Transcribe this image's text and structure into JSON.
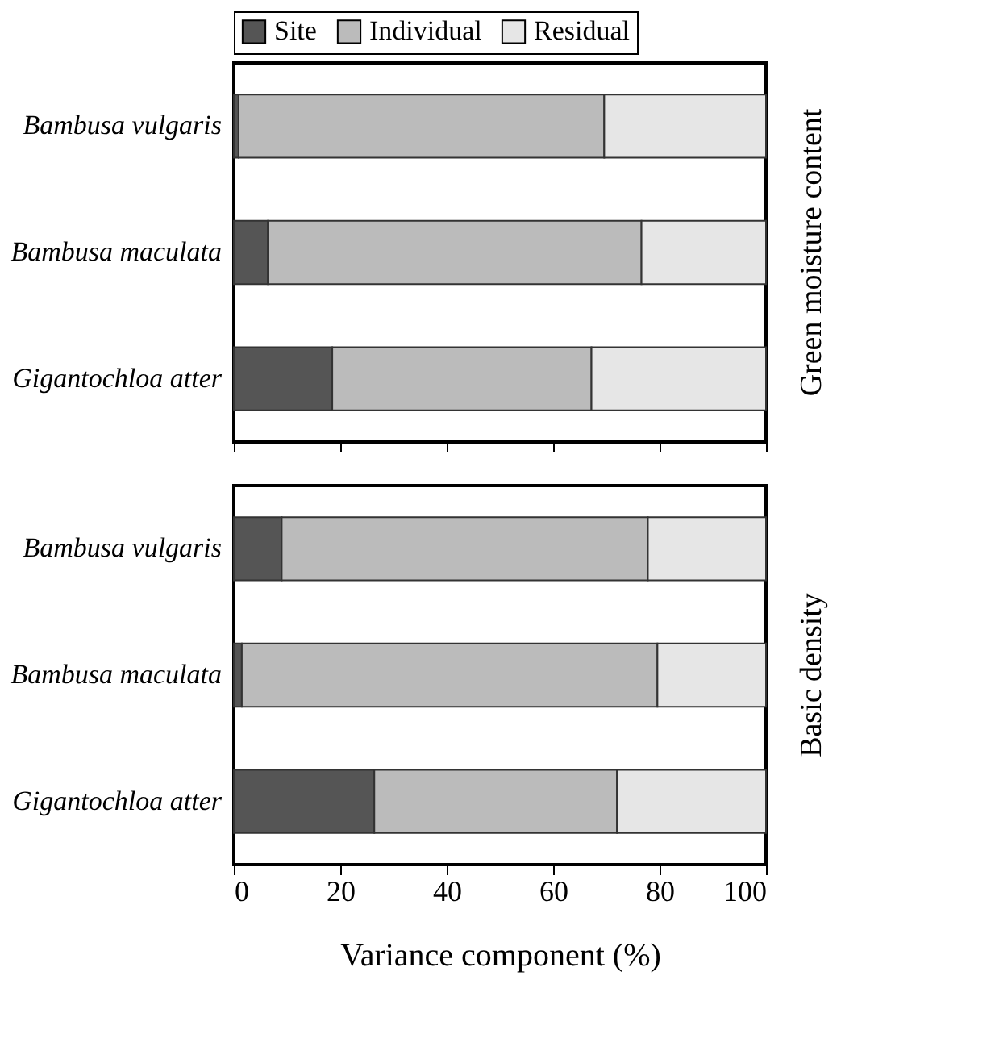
{
  "chart_data": [
    {
      "type": "bar",
      "orientation": "horizontal",
      "stacked": true,
      "y2label": "Green moisture content",
      "categories": [
        "Bambusa vulgaris",
        "Bambusa maculata",
        "Gigantochloa atter"
      ],
      "series": [
        {
          "name": "Site",
          "color": "#555555",
          "values": [
            0.9,
            6.4,
            18.5
          ]
        },
        {
          "name": "Individual",
          "color": "#bbbbbb",
          "values": [
            68.7,
            70.2,
            48.7
          ]
        },
        {
          "name": "Residual",
          "color": "#e6e6e6",
          "values": [
            30.4,
            23.4,
            32.8
          ]
        }
      ],
      "xlim": [
        0,
        100
      ],
      "xticks": [
        0,
        20,
        40,
        60,
        80,
        100
      ],
      "tick_labels": "y",
      "legend": "top",
      "grid": false
    },
    {
      "type": "bar",
      "orientation": "horizontal",
      "stacked": true,
      "y2label": "Basic density",
      "xlabel": "Variance component (%)",
      "categories": [
        "Bambusa vulgaris",
        "Bambusa maculata",
        "Gigantochloa atter"
      ],
      "series": [
        {
          "color": "#555555",
          "values": [
            9.0,
            1.5,
            26.4
          ]
        },
        {
          "color": "#bbbbbb",
          "values": [
            68.8,
            78.1,
            45.6
          ]
        },
        {
          "color": "#e6e6e6",
          "values": [
            22.2,
            20.4,
            28.0
          ]
        }
      ],
      "xlim": [
        0,
        100
      ],
      "xticks": [
        0,
        20,
        40,
        60,
        80,
        100
      ],
      "legend": false,
      "grid": false
    }
  ]
}
